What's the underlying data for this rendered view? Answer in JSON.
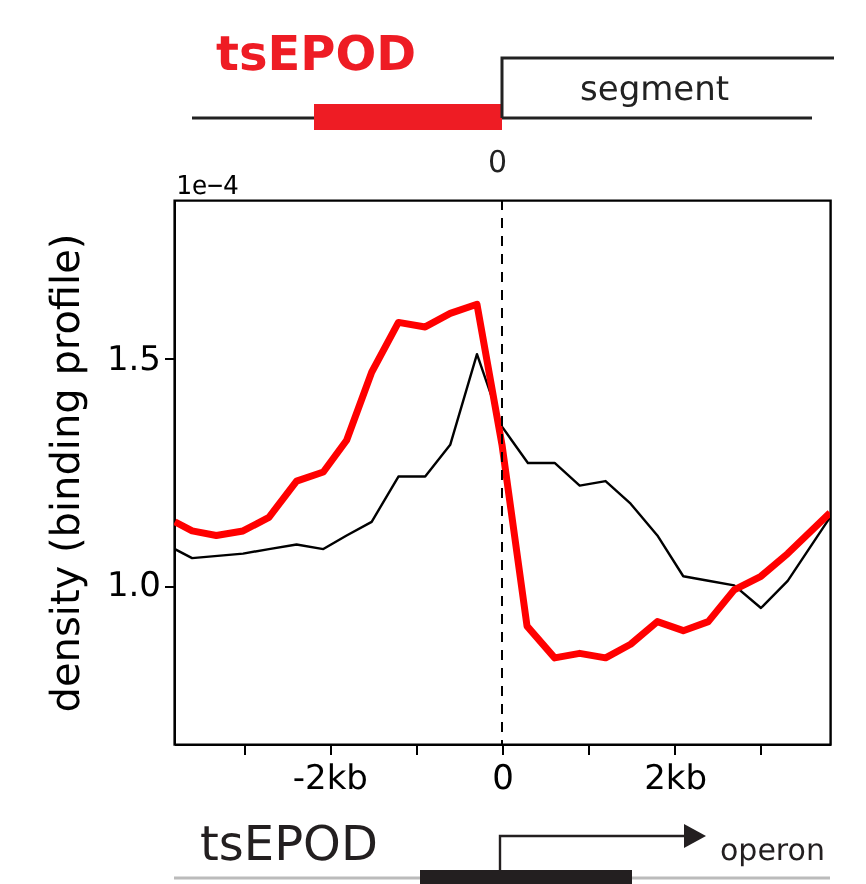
{
  "chart_data": {
    "type": "line",
    "ylabel": "density (binding profile)",
    "annotations": [
      "tsEPOD",
      "segment",
      "0",
      "1e−4",
      "tsEPOD",
      "operon"
    ],
    "xlim": [
      -3.8,
      3.8
    ],
    "xticks": [
      {
        "value": -3,
        "label": null
      },
      {
        "value": -2,
        "label": "-2kb"
      },
      {
        "value": -1,
        "label": null
      },
      {
        "value": 0,
        "label": "0"
      },
      {
        "value": 1,
        "label": null
      },
      {
        "value": 2,
        "label": "2kb"
      },
      {
        "value": 3,
        "label": null
      }
    ],
    "ylim": [
      0.65,
      1.85
    ],
    "yticks": [
      {
        "value": 1,
        "label": "1.0"
      },
      {
        "value": 1.5,
        "label": "1.5"
      }
    ],
    "grid": false,
    "marker": "none",
    "line_style": "solid",
    "ref_lines": [
      {
        "axis": "x",
        "value": 0,
        "color": "#000000",
        "line_style": "dashed"
      }
    ],
    "series": [
      {
        "color": "#000000",
        "x": [
          -3.79,
          -3.59,
          -3.0,
          -2.7,
          -2.38,
          -2.07,
          -1.8,
          -1.51,
          -1.2,
          -0.89,
          -0.6,
          -0.29,
          0,
          0.3,
          0.61,
          0.9,
          1.2,
          1.49,
          1.8,
          2.1,
          2.39,
          2.69,
          3.0,
          3.31,
          3.8
        ],
        "values": [
          1.08,
          1.06,
          1.07,
          1.08,
          1.09,
          1.08,
          1.11,
          1.14,
          1.24,
          1.24,
          1.31,
          1.51,
          1.35,
          1.27,
          1.27,
          1.22,
          1.23,
          1.18,
          1.11,
          1.02,
          1.01,
          1.0,
          0.95,
          1.01,
          1.15
        ]
      },
      {
        "color": "#ff0000",
        "x": [
          -3.79,
          -3.59,
          -3.31,
          -3.0,
          -2.7,
          -2.38,
          -2.07,
          -1.8,
          -1.51,
          -1.2,
          -0.89,
          -0.6,
          -0.29,
          0,
          0.29,
          0.61,
          0.9,
          1.2,
          1.49,
          1.8,
          2.1,
          2.39,
          2.69,
          3.0,
          3.31,
          3.8
        ],
        "values": [
          1.14,
          1.12,
          1.11,
          1.12,
          1.15,
          1.23,
          1.25,
          1.32,
          1.47,
          1.58,
          1.57,
          1.6,
          1.62,
          1.31,
          0.91,
          0.84,
          0.85,
          0.84,
          0.87,
          0.92,
          0.9,
          0.92,
          0.99,
          1.02,
          1.07,
          1.16
        ]
      }
    ]
  }
}
